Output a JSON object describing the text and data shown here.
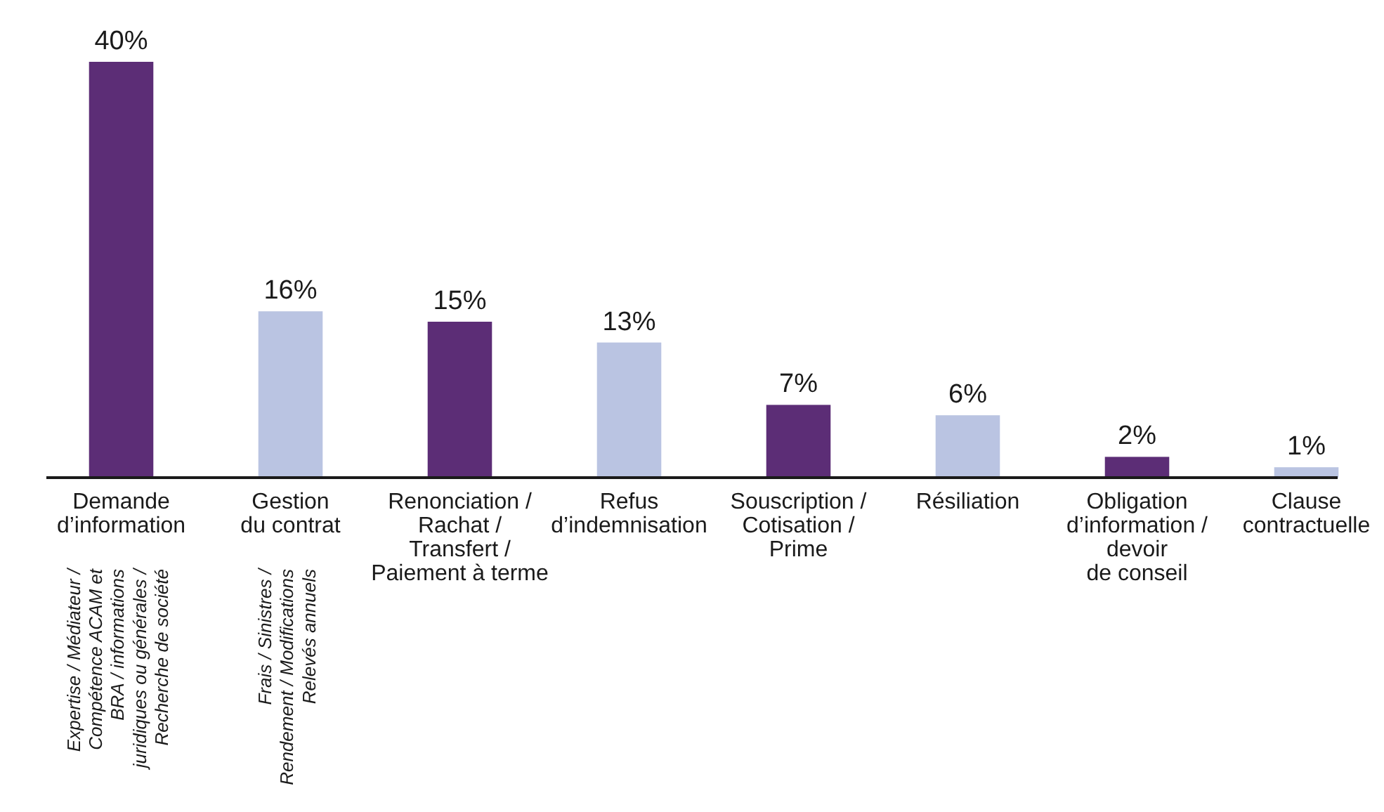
{
  "chart_data": {
    "type": "bar",
    "categories": [
      "Demande\nd’information",
      "Gestion\ndu contrat",
      "Renonciation /\nRachat /\nTransfert /\nPaiement à terme",
      "Refus\nd’indemnisation",
      "Souscription /\nCotisation /\nPrime",
      "Résiliation",
      "Obligation\nd’information /\ndevoir\nde conseil",
      "Clause\ncontractuelle"
    ],
    "values": [
      40,
      16,
      15,
      13,
      7,
      6,
      2,
      1
    ],
    "value_labels": [
      "40%",
      "16%",
      "15%",
      "13%",
      "7%",
      "6%",
      "2%",
      "1%"
    ],
    "colors": [
      "#5c2d76",
      "#bac4e2",
      "#5c2d76",
      "#bac4e2",
      "#5c2d76",
      "#bac4e2",
      "#5c2d76",
      "#bac4e2"
    ],
    "annotations": [
      "Expertise / Médiateur /\nCompétence ACAM et\nBRA / informations\njuridiques ou générales /\nRecherche de société",
      "Frais / Sinistres /\nRendement / Modifications\nRelevés annuels"
    ]
  }
}
